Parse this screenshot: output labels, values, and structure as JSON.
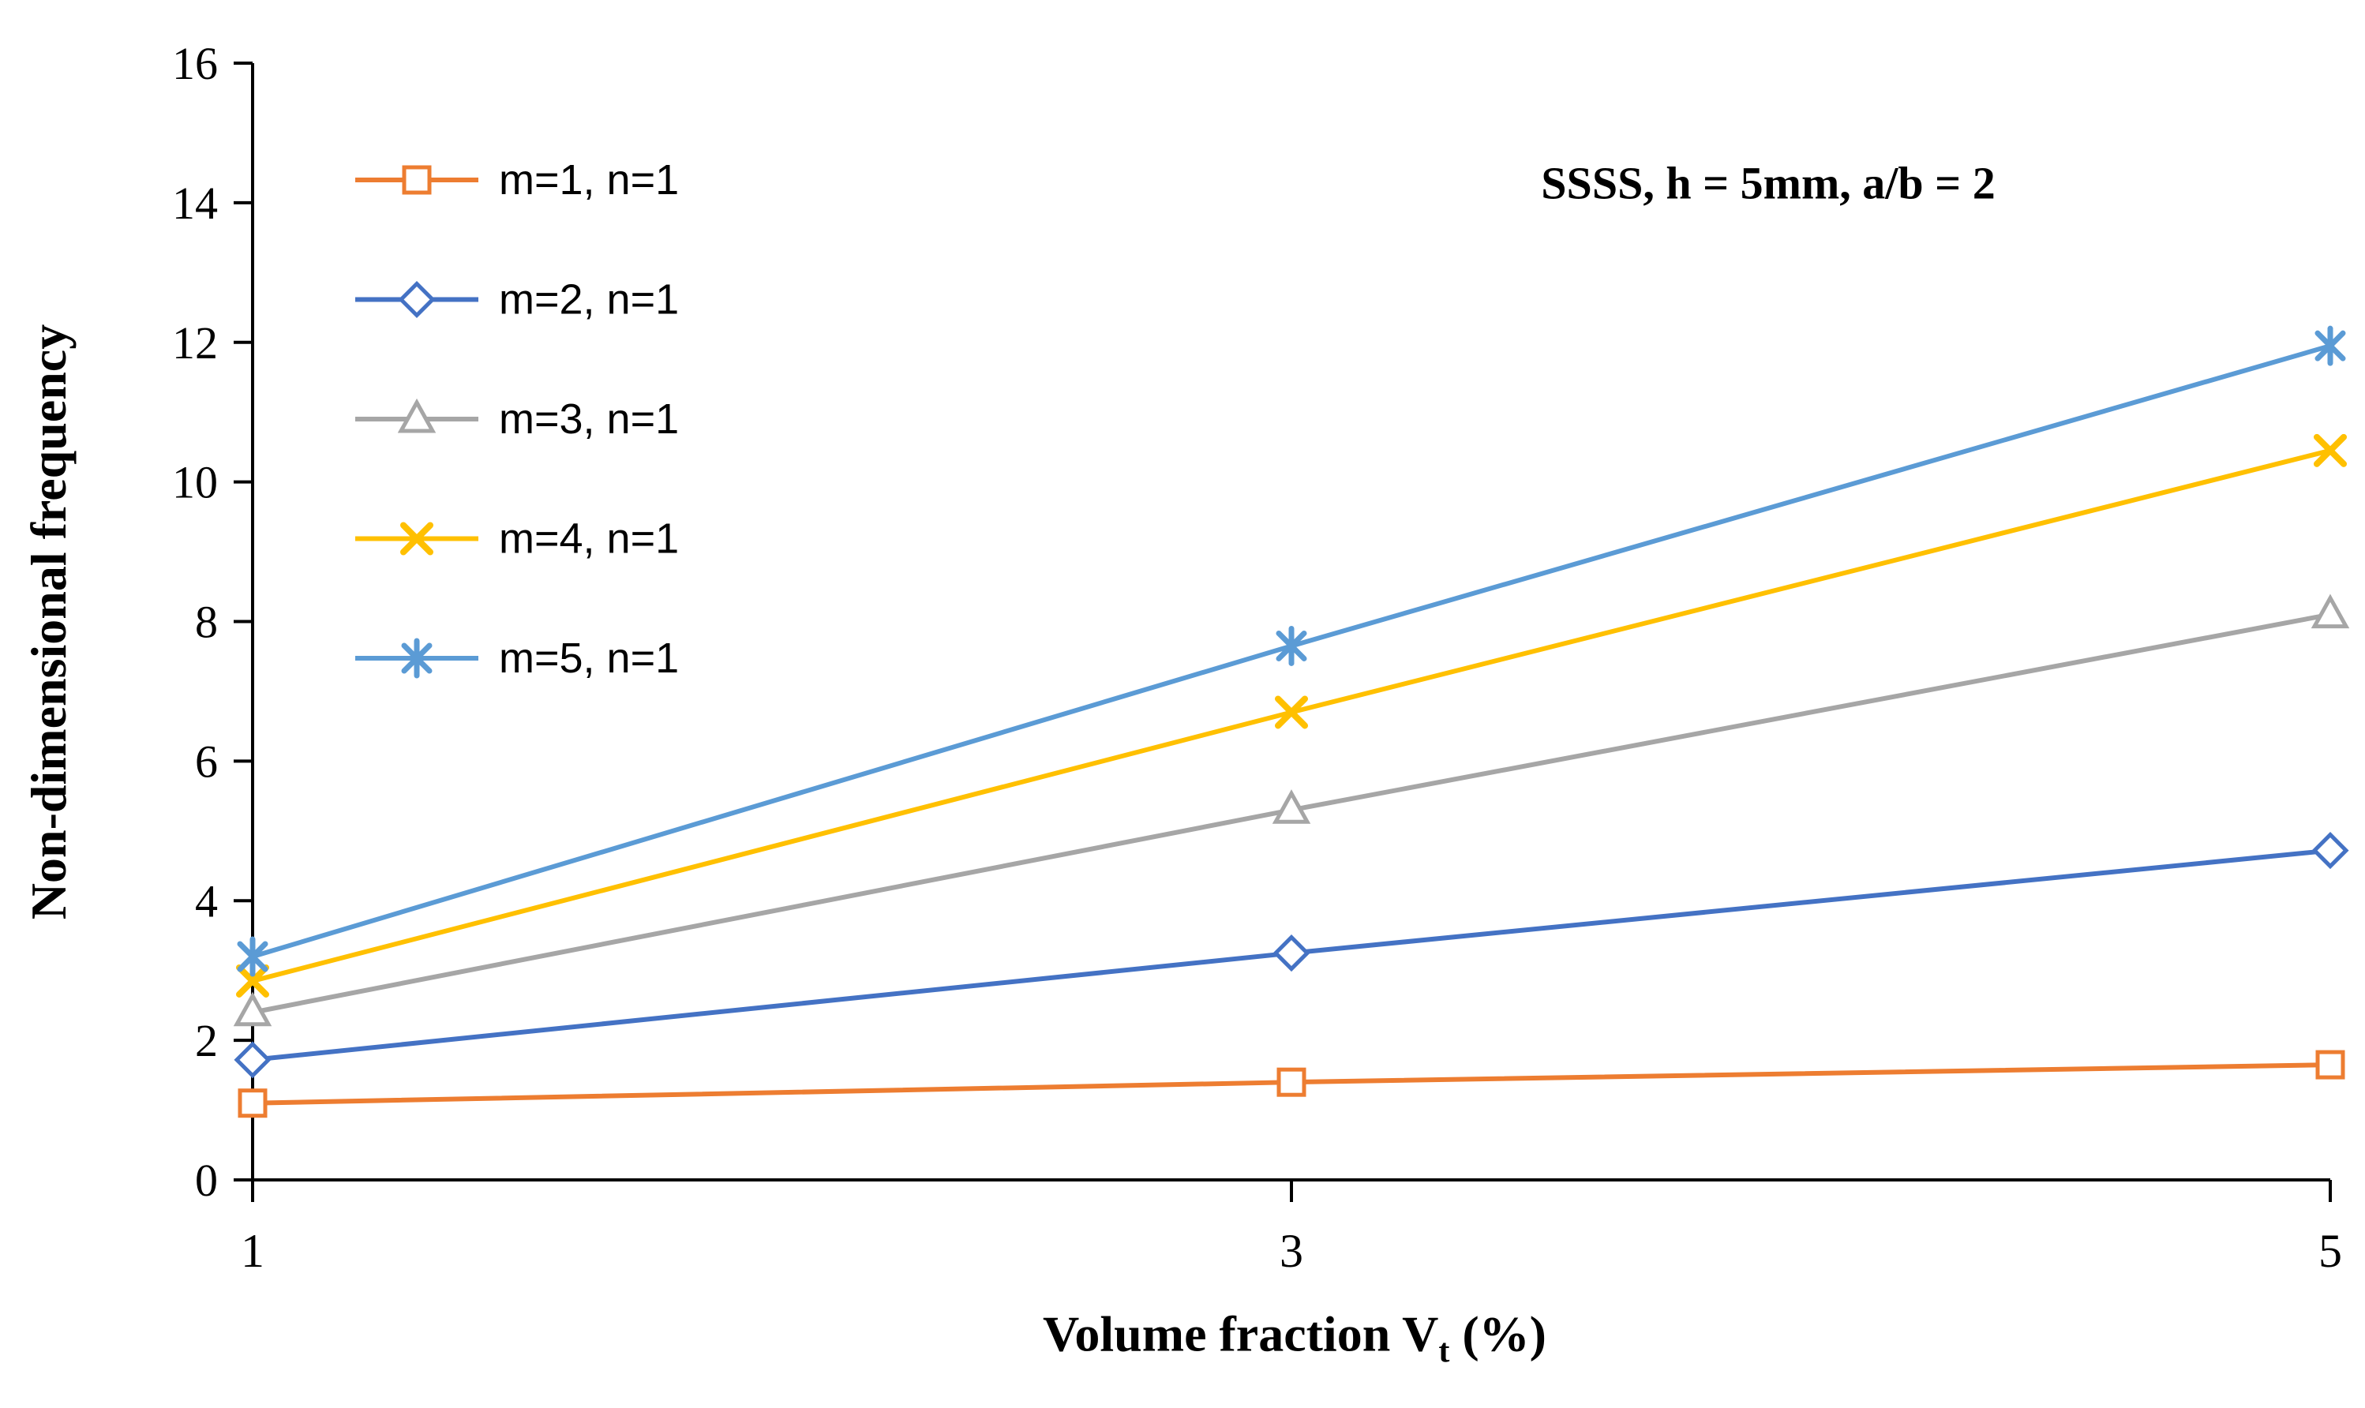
{
  "chart_data": {
    "type": "line",
    "x": [
      1,
      3,
      5
    ],
    "xticks": [
      1,
      3,
      5
    ],
    "series": [
      {
        "name": "m=1, n=1",
        "values": [
          1.1,
          1.4,
          1.65
        ],
        "color": "#ED7D31",
        "marker": "square"
      },
      {
        "name": "m=2, n=1",
        "values": [
          1.72,
          3.25,
          4.72
        ],
        "color": "#4472C4",
        "marker": "diamond"
      },
      {
        "name": "m=3, n=1",
        "values": [
          2.4,
          5.3,
          8.1
        ],
        "color": "#A6A6A6",
        "marker": "triangle"
      },
      {
        "name": "m=4, n=1",
        "values": [
          2.85,
          6.7,
          10.45
        ],
        "color": "#FFC000",
        "marker": "x"
      },
      {
        "name": "m=5, n=1",
        "values": [
          3.2,
          7.65,
          11.95
        ],
        "color": "#5B9BD5",
        "marker": "asterisk"
      }
    ],
    "annotation": "SSSS, h = 5mm, a/b = 2",
    "ylabel": "Non-dimensional frequency",
    "xlabel": {
      "main": "Volume fraction V",
      "sub": "t",
      "suffix": " (%)"
    },
    "ylim": [
      0,
      16
    ],
    "ytick_step": 2,
    "grid": false,
    "legend_position": "top-left",
    "axis_color": "#000000",
    "background_color": "#ffffff"
  }
}
